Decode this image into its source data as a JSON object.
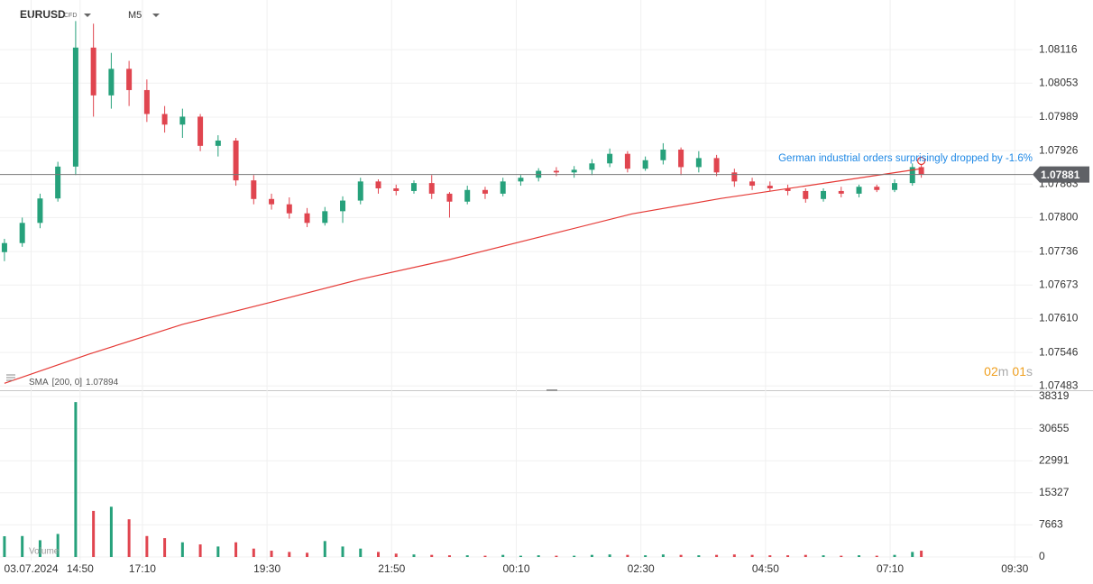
{
  "header": {
    "symbol": "EURUSD",
    "instrument_type": "CFD",
    "timeframe": "M5"
  },
  "chart_data": [
    {
      "type": "candlestick",
      "x": [
        0,
        4,
        8,
        12,
        16,
        20,
        24,
        28,
        32,
        36,
        40,
        44,
        48,
        52,
        56,
        60,
        64,
        68,
        72,
        76,
        80,
        84,
        88,
        92,
        96,
        100,
        104,
        108,
        112,
        116,
        120,
        124,
        128,
        132,
        136,
        140,
        144,
        148,
        152,
        156,
        160,
        164,
        168,
        172,
        176,
        180,
        184,
        188,
        192,
        196,
        200,
        204,
        206
      ],
      "open": [
        1.07735,
        1.07752,
        1.0779,
        1.07836,
        1.07896,
        1.0812,
        1.0803,
        1.0808,
        1.0804,
        1.07995,
        1.07975,
        1.0799,
        1.07935,
        1.07945,
        1.0787,
        1.07835,
        1.07825,
        1.07808,
        1.0779,
        1.07812,
        1.07832,
        1.07868,
        1.07855,
        1.0785,
        1.07865,
        1.07845,
        1.0783,
        1.07852,
        1.07845,
        1.07868,
        1.07875,
        1.07888,
        1.07885,
        1.0789,
        1.07902,
        1.0792,
        1.07892,
        1.07908,
        1.07928,
        1.07895,
        1.07912,
        1.07885,
        1.07868,
        1.0786,
        1.07855,
        1.0785,
        1.07835,
        1.0785,
        1.07845,
        1.07858,
        1.07852,
        1.07865,
        1.07895
      ],
      "high": [
        1.0776,
        1.078,
        1.07845,
        1.07905,
        1.0817,
        1.08165,
        1.0811,
        1.08095,
        1.0806,
        1.0801,
        1.08005,
        1.07995,
        1.07955,
        1.0795,
        1.0788,
        1.07845,
        1.07838,
        1.07818,
        1.0782,
        1.0784,
        1.07875,
        1.07872,
        1.07862,
        1.0787,
        1.0788,
        1.07848,
        1.0786,
        1.07858,
        1.07875,
        1.0788,
        1.07893,
        1.07895,
        1.07897,
        1.0791,
        1.0793,
        1.07925,
        1.07915,
        1.0794,
        1.07932,
        1.07925,
        1.07918,
        1.07892,
        1.07875,
        1.07868,
        1.07862,
        1.07855,
        1.07855,
        1.07858,
        1.07862,
        1.07862,
        1.07872,
        1.07902,
        1.079
      ],
      "low": [
        1.07718,
        1.07745,
        1.0778,
        1.0783,
        1.0788,
        1.0799,
        1.08005,
        1.0801,
        1.0798,
        1.0796,
        1.0795,
        1.07925,
        1.07915,
        1.0786,
        1.07825,
        1.07815,
        1.07798,
        1.07782,
        1.07785,
        1.0779,
        1.07825,
        1.07845,
        1.07842,
        1.07845,
        1.07835,
        1.078,
        1.07825,
        1.07835,
        1.0784,
        1.0786,
        1.07868,
        1.07878,
        1.07875,
        1.0788,
        1.07895,
        1.07885,
        1.07888,
        1.079,
        1.0788,
        1.07885,
        1.07878,
        1.07858,
        1.07852,
        1.0785,
        1.07842,
        1.07828,
        1.0783,
        1.07838,
        1.07838,
        1.07848,
        1.07848,
        1.0786,
        1.07875
      ],
      "close": [
        1.07752,
        1.0779,
        1.07836,
        1.07896,
        1.0812,
        1.0803,
        1.0808,
        1.0804,
        1.07995,
        1.07975,
        1.0799,
        1.07935,
        1.07945,
        1.0787,
        1.07835,
        1.07825,
        1.07808,
        1.0779,
        1.07812,
        1.07832,
        1.07868,
        1.07855,
        1.0785,
        1.07865,
        1.07845,
        1.0783,
        1.07852,
        1.07845,
        1.07868,
        1.07875,
        1.07888,
        1.07885,
        1.0789,
        1.07902,
        1.0792,
        1.07892,
        1.07908,
        1.07928,
        1.07895,
        1.07912,
        1.07885,
        1.07868,
        1.0786,
        1.07855,
        1.0785,
        1.07835,
        1.0785,
        1.07845,
        1.07858,
        1.07852,
        1.07865,
        1.07895,
        1.07881
      ],
      "up_color": "#26a17b",
      "down_color": "#e0454f",
      "sma": {
        "label": "SMA",
        "params": "[200, 0]",
        "last_value": 1.07894,
        "color": "#e53935",
        "x": [
          0,
          19,
          40,
          60,
          80,
          100,
          121,
          141,
          161,
          182,
          202,
          206
        ],
        "values": [
          1.07488,
          1.07543,
          1.07599,
          1.07641,
          1.07684,
          1.07721,
          1.07765,
          1.07807,
          1.07836,
          1.07862,
          1.07887,
          1.07892
        ]
      },
      "current_price": 1.07881,
      "annotation": "German industrial orders surprisingly dropped by -1.6%",
      "countdown": {
        "minutes": "02",
        "minutes_unit": "m",
        "seconds": "01",
        "seconds_unit": "s"
      },
      "ylim": [
        1.07475,
        1.08196
      ],
      "yticks": [
        1.08116,
        1.08053,
        1.07989,
        1.07926,
        1.07863,
        {
          "value": 1.078,
          "label": "1.07800"
        },
        1.07736,
        1.07673,
        {
          "value": 1.0761,
          "label": "1.07610"
        },
        1.07546,
        1.07483
      ],
      "grid": true
    },
    {
      "type": "bar",
      "label": "Volume",
      "values": [
        4950,
        5000,
        4000,
        5500,
        37000,
        11000,
        12000,
        9000,
        5000,
        4500,
        3500,
        3000,
        2500,
        3500,
        2000,
        1500,
        1200,
        1000,
        3800,
        2500,
        2000,
        1200,
        800,
        600,
        500,
        400,
        400,
        300,
        500,
        300,
        400,
        300,
        300,
        500,
        600,
        500,
        400,
        600,
        500,
        400,
        500,
        600,
        500,
        400,
        400,
        500,
        400,
        300,
        400,
        300,
        500,
        1200,
        1500
      ],
      "ylim": [
        0,
        38319
      ],
      "yticks": [
        0,
        7663,
        15327,
        22991,
        30655,
        38319
      ],
      "xlim": [
        -1,
        231
      ],
      "xticks": [
        {
          "value": 6,
          "label": "03.07.2024"
        },
        {
          "value": 17,
          "label": "14:50"
        },
        {
          "value": 31,
          "label": "17:10"
        },
        {
          "value": 59,
          "label": "19:30"
        },
        {
          "value": 87,
          "label": "21:50"
        },
        {
          "value": 115,
          "label": "00:10"
        },
        {
          "value": 143,
          "label": "02:30"
        },
        {
          "value": 171,
          "label": "04:50"
        },
        {
          "value": 199,
          "label": "07:10"
        },
        {
          "value": 227,
          "label": "09:30"
        }
      ],
      "grid": true
    }
  ]
}
